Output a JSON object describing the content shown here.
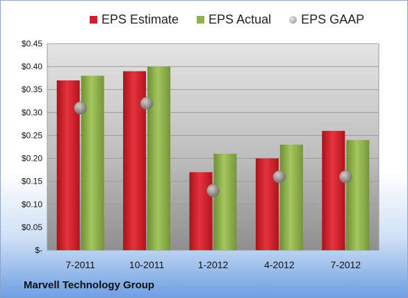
{
  "company": "Marvell Technology Group",
  "legend": {
    "estimate": "EPS Estimate",
    "actual": "EPS Actual",
    "gaap": "EPS GAAP"
  },
  "colors": {
    "estimate": "#cc1f2a",
    "actual": "#8fb04a",
    "gaap": "#8a8a8a"
  },
  "chart_data": {
    "type": "bar",
    "categories": [
      "7-2011",
      "10-2011",
      "1-2012",
      "4-2012",
      "7-2012"
    ],
    "series": [
      {
        "name": "EPS Estimate",
        "type": "bar",
        "values": [
          0.37,
          0.39,
          0.17,
          0.2,
          0.26
        ]
      },
      {
        "name": "EPS Actual",
        "type": "bar",
        "values": [
          0.38,
          0.4,
          0.21,
          0.23,
          0.24
        ]
      },
      {
        "name": "EPS GAAP",
        "type": "scatter",
        "values": [
          0.31,
          0.32,
          0.13,
          0.16,
          0.16
        ]
      }
    ],
    "ylim": [
      0,
      0.45
    ],
    "yticks": [
      0,
      0.05,
      0.1,
      0.15,
      0.2,
      0.25,
      0.3,
      0.35,
      0.4,
      0.45
    ],
    "ytick_labels": [
      "$-",
      "$0.05",
      "$0.10",
      "$0.15",
      "$0.20",
      "$0.25",
      "$0.30",
      "$0.35",
      "$0.40",
      "$0.45"
    ],
    "grid": true,
    "legend_position": "top"
  }
}
